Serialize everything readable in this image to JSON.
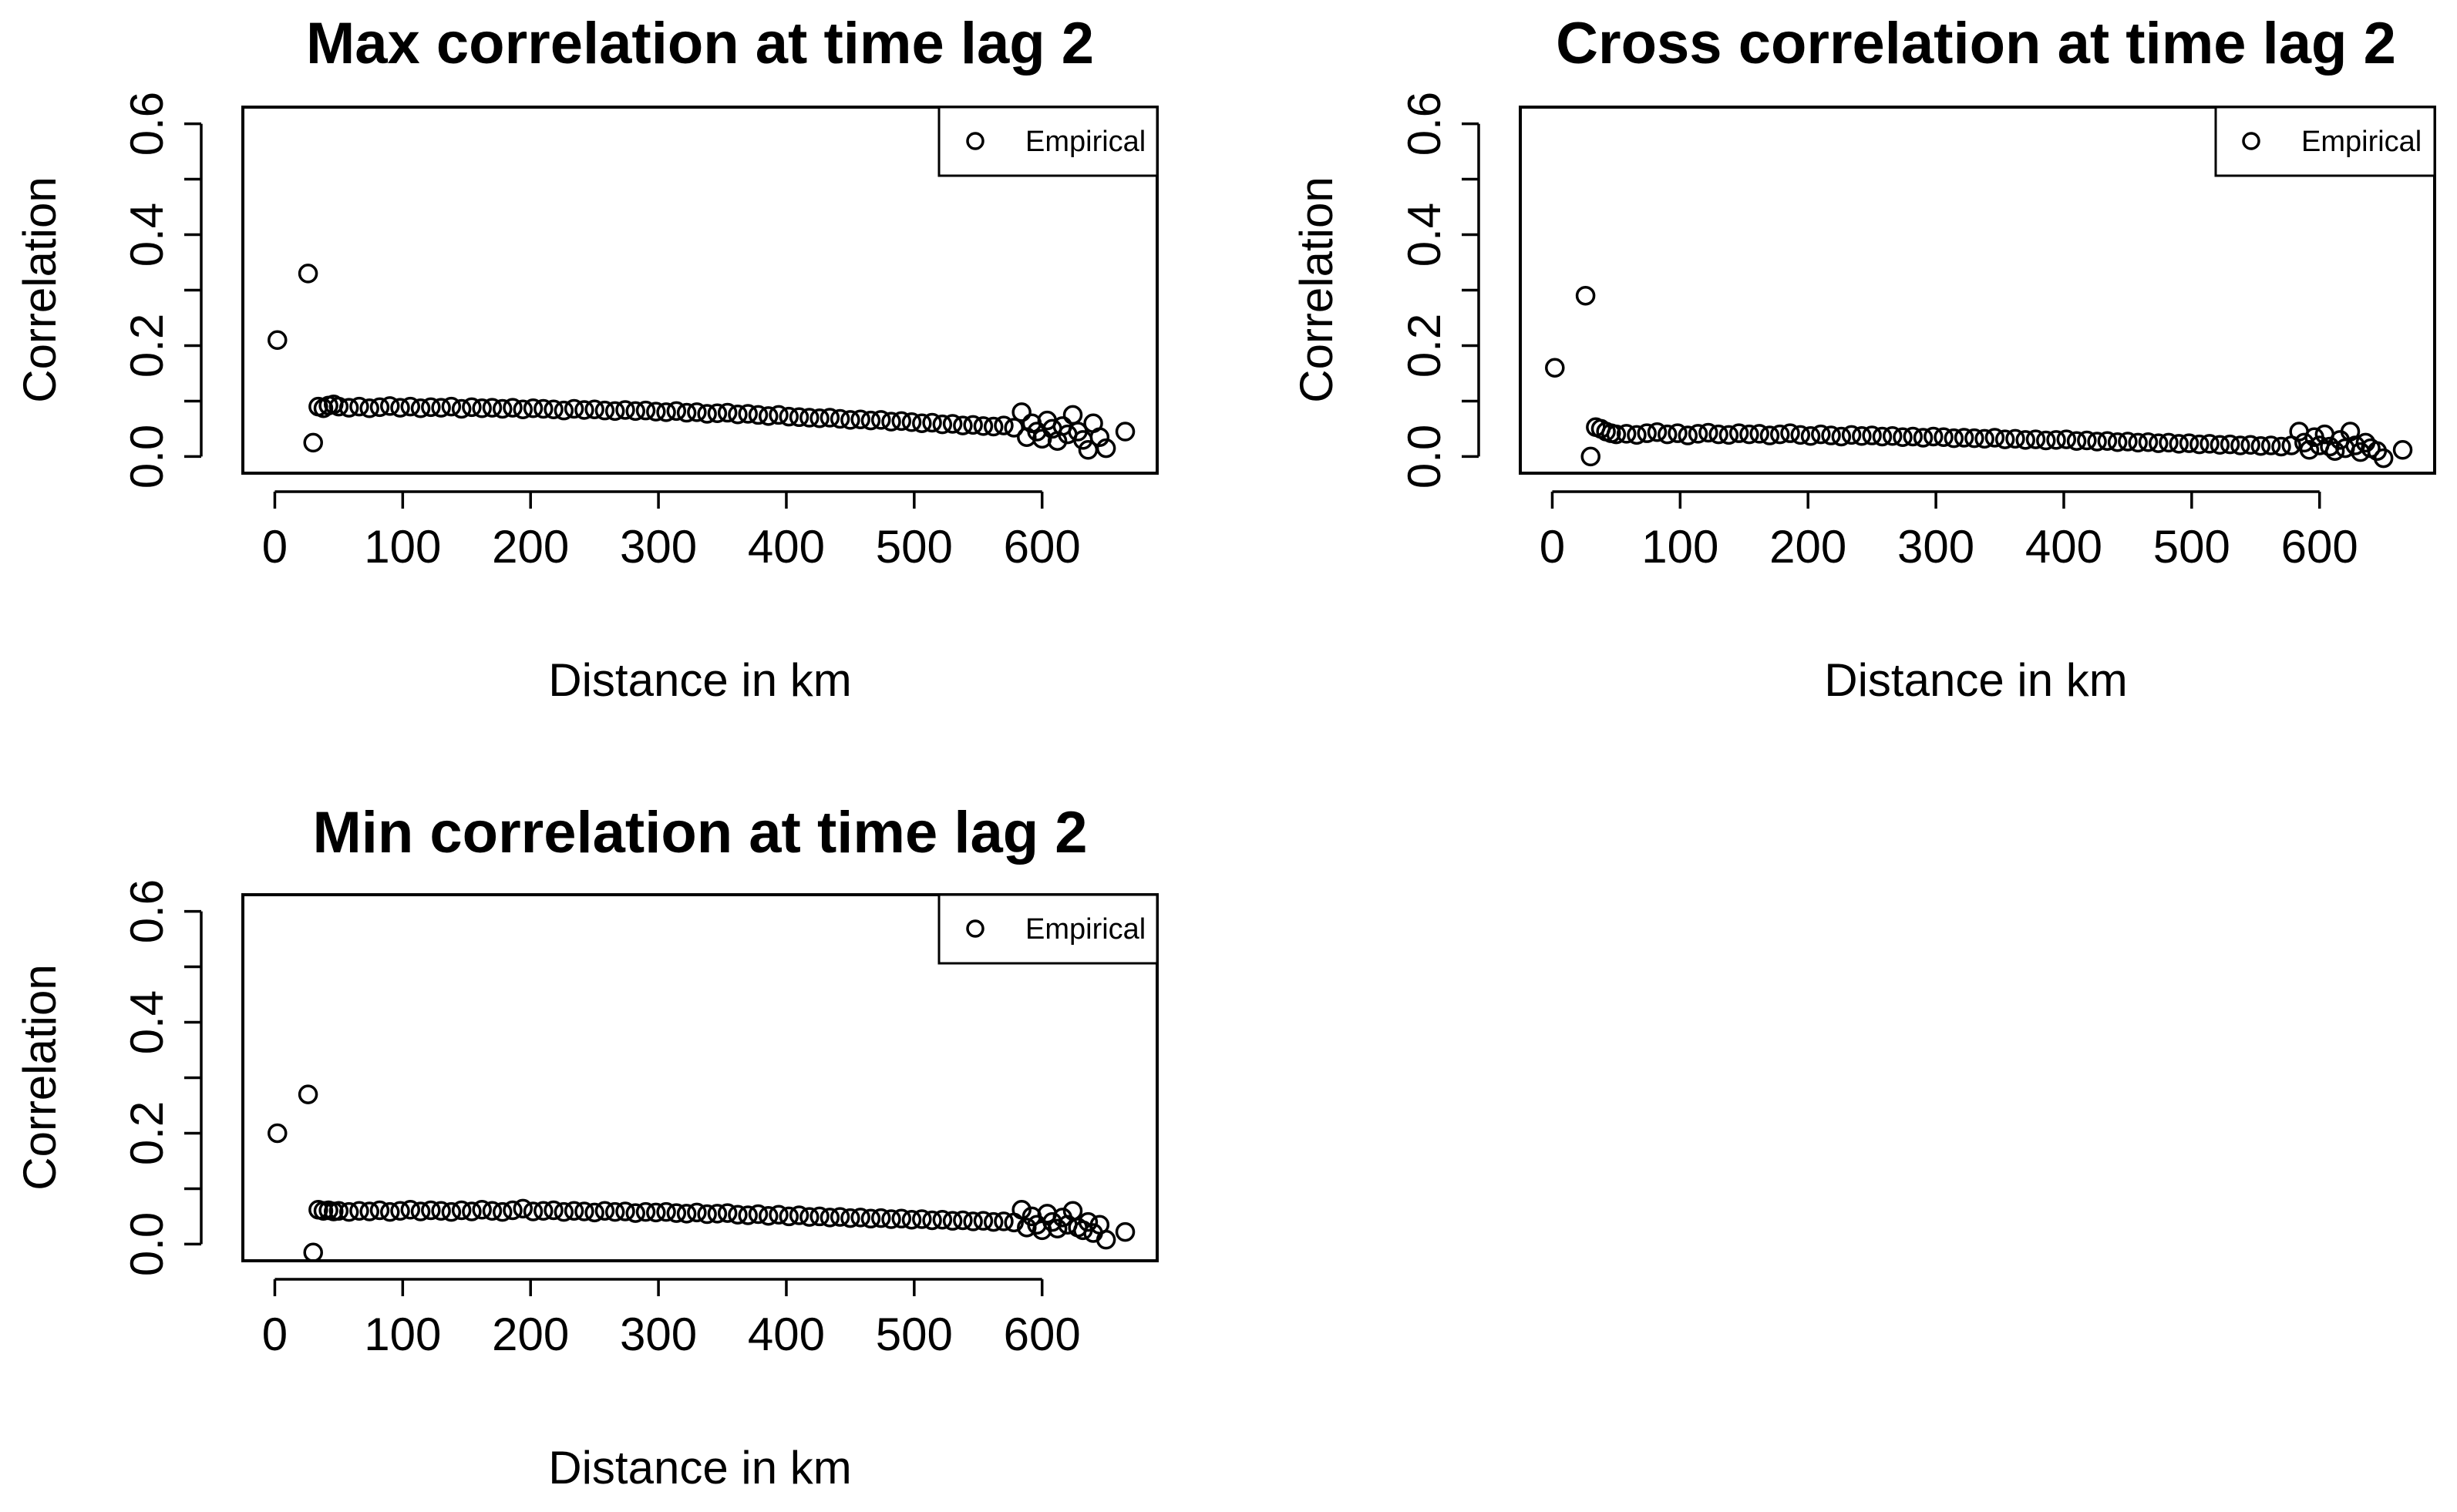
{
  "figure": {
    "background": "#ffffff",
    "marker_color": "#000000"
  },
  "chart_data": [
    {
      "type": "scatter",
      "title": "Max correlation at time lag 2",
      "xlabel": "Distance in km",
      "ylabel": "Correlation",
      "xlim": [
        -25,
        690
      ],
      "ylim": [
        -0.03,
        0.63
      ],
      "xticks": [
        0,
        100,
        200,
        300,
        400,
        500,
        600
      ],
      "yticks": [
        0.0,
        0.2,
        0.4,
        0.6
      ],
      "ytick_labels": [
        "0.0",
        "0.2",
        "0.4",
        "0.6"
      ],
      "grid": false,
      "legend": {
        "position": "top-right",
        "entries": [
          "Empirical"
        ]
      },
      "series": [
        {
          "name": "Empirical",
          "x": [
            2,
            26,
            30,
            34,
            38,
            42,
            46,
            50,
            58,
            66,
            74,
            82,
            90,
            98,
            106,
            114,
            122,
            130,
            138,
            146,
            154,
            162,
            170,
            178,
            186,
            194,
            202,
            210,
            218,
            226,
            234,
            242,
            250,
            258,
            266,
            274,
            282,
            290,
            298,
            306,
            314,
            322,
            330,
            338,
            346,
            354,
            362,
            370,
            378,
            386,
            394,
            402,
            410,
            418,
            426,
            434,
            442,
            450,
            458,
            466,
            474,
            482,
            490,
            498,
            506,
            514,
            522,
            530,
            538,
            546,
            554,
            562,
            570,
            578,
            584,
            588,
            592,
            596,
            600,
            604,
            608,
            612,
            616,
            620,
            624,
            628,
            632,
            636,
            640,
            645,
            650,
            665
          ],
          "y": [
            0.21,
            0.33,
            0.025,
            0.09,
            0.087,
            0.092,
            0.094,
            0.09,
            0.088,
            0.09,
            0.087,
            0.089,
            0.091,
            0.088,
            0.09,
            0.087,
            0.089,
            0.088,
            0.09,
            0.086,
            0.089,
            0.087,
            0.088,
            0.086,
            0.088,
            0.085,
            0.087,
            0.086,
            0.085,
            0.083,
            0.086,
            0.084,
            0.085,
            0.083,
            0.082,
            0.084,
            0.082,
            0.083,
            0.081,
            0.08,
            0.082,
            0.079,
            0.08,
            0.077,
            0.078,
            0.079,
            0.076,
            0.077,
            0.075,
            0.073,
            0.075,
            0.072,
            0.071,
            0.07,
            0.069,
            0.07,
            0.068,
            0.066,
            0.067,
            0.065,
            0.066,
            0.063,
            0.064,
            0.062,
            0.06,
            0.061,
            0.058,
            0.059,
            0.056,
            0.057,
            0.055,
            0.054,
            0.056,
            0.052,
            0.08,
            0.035,
            0.06,
            0.045,
            0.032,
            0.065,
            0.05,
            0.028,
            0.055,
            0.04,
            0.075,
            0.045,
            0.03,
            0.012,
            0.06,
            0.035,
            0.015,
            0.045
          ]
        }
      ]
    },
    {
      "type": "scatter",
      "title": "Cross correlation at time lag 2",
      "xlabel": "Distance in km",
      "ylabel": "Correlation",
      "xlim": [
        -25,
        690
      ],
      "ylim": [
        -0.03,
        0.63
      ],
      "xticks": [
        0,
        100,
        200,
        300,
        400,
        500,
        600
      ],
      "yticks": [
        0.0,
        0.2,
        0.4,
        0.6
      ],
      "ytick_labels": [
        "0.0",
        "0.2",
        "0.4",
        "0.6"
      ],
      "grid": false,
      "legend": {
        "position": "top-right",
        "entries": [
          "Empirical"
        ]
      },
      "series": [
        {
          "name": "Empirical",
          "x": [
            2,
            26,
            30,
            34,
            38,
            42,
            46,
            50,
            58,
            66,
            74,
            82,
            90,
            98,
            106,
            114,
            122,
            130,
            138,
            146,
            154,
            162,
            170,
            178,
            186,
            194,
            202,
            210,
            218,
            226,
            234,
            242,
            250,
            258,
            266,
            274,
            282,
            290,
            298,
            306,
            314,
            322,
            330,
            338,
            346,
            354,
            362,
            370,
            378,
            386,
            394,
            402,
            410,
            418,
            426,
            434,
            442,
            450,
            458,
            466,
            474,
            482,
            490,
            498,
            506,
            514,
            522,
            530,
            538,
            546,
            554,
            562,
            570,
            578,
            584,
            588,
            592,
            596,
            600,
            604,
            608,
            612,
            616,
            620,
            624,
            628,
            632,
            636,
            640,
            645,
            650,
            665
          ],
          "y": [
            0.16,
            0.29,
            0.0,
            0.053,
            0.05,
            0.045,
            0.042,
            0.04,
            0.041,
            0.039,
            0.042,
            0.044,
            0.04,
            0.042,
            0.038,
            0.041,
            0.043,
            0.04,
            0.039,
            0.042,
            0.04,
            0.041,
            0.038,
            0.04,
            0.042,
            0.039,
            0.037,
            0.04,
            0.038,
            0.036,
            0.039,
            0.037,
            0.038,
            0.036,
            0.037,
            0.035,
            0.036,
            0.034,
            0.036,
            0.035,
            0.033,
            0.034,
            0.033,
            0.032,
            0.034,
            0.031,
            0.032,
            0.03,
            0.031,
            0.029,
            0.03,
            0.031,
            0.028,
            0.029,
            0.027,
            0.028,
            0.026,
            0.027,
            0.025,
            0.026,
            0.024,
            0.025,
            0.023,
            0.024,
            0.022,
            0.023,
            0.021,
            0.022,
            0.02,
            0.021,
            0.019,
            0.02,
            0.018,
            0.02,
            0.045,
            0.025,
            0.012,
            0.035,
            0.02,
            0.04,
            0.018,
            0.01,
            0.03,
            0.015,
            0.045,
            0.02,
            0.008,
            0.025,
            0.015,
            0.01,
            -0.003,
            0.012
          ]
        }
      ]
    },
    {
      "type": "scatter",
      "title": "Min correlation at time lag 2",
      "xlabel": "Distance in km",
      "ylabel": "Correlation",
      "xlim": [
        -25,
        690
      ],
      "ylim": [
        -0.03,
        0.63
      ],
      "xticks": [
        0,
        100,
        200,
        300,
        400,
        500,
        600
      ],
      "yticks": [
        0.0,
        0.2,
        0.4,
        0.6
      ],
      "ytick_labels": [
        "0.0",
        "0.2",
        "0.4",
        "0.6"
      ],
      "grid": false,
      "legend": {
        "position": "top-right",
        "entries": [
          "Empirical"
        ]
      },
      "series": [
        {
          "name": "Empirical",
          "x": [
            2,
            26,
            30,
            34,
            38,
            42,
            46,
            50,
            58,
            66,
            74,
            82,
            90,
            98,
            106,
            114,
            122,
            130,
            138,
            146,
            154,
            162,
            170,
            178,
            186,
            194,
            202,
            210,
            218,
            226,
            234,
            242,
            250,
            258,
            266,
            274,
            282,
            290,
            298,
            306,
            314,
            322,
            330,
            338,
            346,
            354,
            362,
            370,
            378,
            386,
            394,
            402,
            410,
            418,
            426,
            434,
            442,
            450,
            458,
            466,
            474,
            482,
            490,
            498,
            506,
            514,
            522,
            530,
            538,
            546,
            554,
            562,
            570,
            578,
            584,
            588,
            592,
            596,
            600,
            604,
            608,
            612,
            616,
            620,
            624,
            628,
            632,
            636,
            640,
            645,
            650,
            665
          ],
          "y": [
            0.2,
            0.27,
            -0.015,
            0.062,
            0.06,
            0.061,
            0.059,
            0.06,
            0.058,
            0.06,
            0.059,
            0.061,
            0.058,
            0.06,
            0.062,
            0.059,
            0.061,
            0.06,
            0.058,
            0.061,
            0.059,
            0.062,
            0.06,
            0.058,
            0.061,
            0.064,
            0.059,
            0.06,
            0.061,
            0.058,
            0.06,
            0.059,
            0.057,
            0.06,
            0.058,
            0.059,
            0.056,
            0.058,
            0.057,
            0.058,
            0.056,
            0.055,
            0.057,
            0.054,
            0.055,
            0.056,
            0.053,
            0.052,
            0.054,
            0.051,
            0.053,
            0.05,
            0.052,
            0.049,
            0.05,
            0.048,
            0.049,
            0.047,
            0.048,
            0.046,
            0.047,
            0.045,
            0.046,
            0.044,
            0.045,
            0.043,
            0.044,
            0.042,
            0.043,
            0.041,
            0.042,
            0.04,
            0.041,
            0.039,
            0.062,
            0.03,
            0.05,
            0.035,
            0.025,
            0.055,
            0.04,
            0.028,
            0.048,
            0.035,
            0.06,
            0.03,
            0.025,
            0.04,
            0.02,
            0.035,
            0.008,
            0.022
          ]
        }
      ]
    }
  ]
}
